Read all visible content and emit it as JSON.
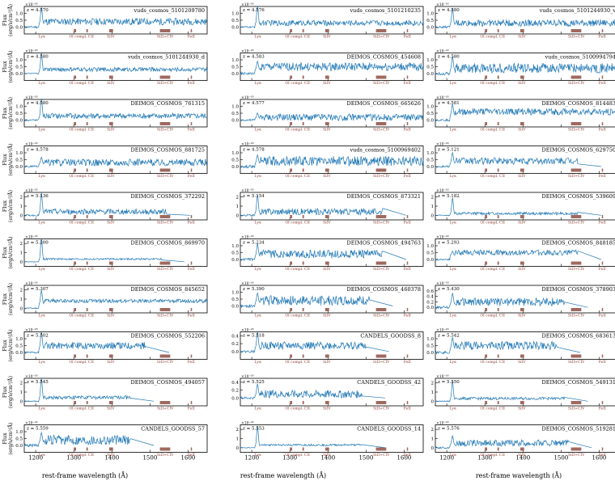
{
  "figure": {
    "ylabel_line1": "Flux",
    "ylabel_line2": "(erg/s/cm²/Å)",
    "xlabel": "rest-frame wavelength (Å)",
    "xticks": [
      "1200",
      "1300",
      "1400",
      "1500",
      "1600"
    ],
    "exponent": "×10⁻¹⁸",
    "line_labels": [
      {
        "text": "Lyα",
        "wave": 1216
      },
      {
        "text": "OI compl. CII",
        "wave": 1320
      },
      {
        "text": "SiIV",
        "wave": 1397
      },
      {
        "text": "SiII+CIV",
        "wave": 1540
      },
      {
        "text": "FeII",
        "wave": 1608
      }
    ],
    "line_markers": [
      {
        "from": 1300,
        "to": 1306
      },
      {
        "from": 1333,
        "to": 1337
      },
      {
        "from": 1393,
        "to": 1403
      },
      {
        "from": 1526,
        "to": 1553
      },
      {
        "from": 1607,
        "to": 1609
      }
    ],
    "colors": {
      "spectrum": "#1f77b4",
      "marker": "#a0695f",
      "label": "#8b3a2f"
    }
  },
  "chart_data": [
    {
      "type": "line",
      "name": "vuds_cosmos_5101209780",
      "z": "z = 4.570",
      "ylim": [
        -0.5,
        1.5
      ],
      "yticks": [
        "0.0",
        "0.5",
        "1.0"
      ],
      "xlim": [
        1170,
        1650
      ],
      "end": 1650,
      "lya": 1.2,
      "cont": 0.4,
      "noise": 0.25,
      "tail": 0.4
    },
    {
      "type": "line",
      "name": "vuds_cosmos_5101210235",
      "z": "z = 4.576",
      "ylim": [
        -0.5,
        1.5
      ],
      "yticks": [
        "0.0",
        "0.5",
        "1.0"
      ],
      "xlim": [
        1170,
        1650
      ],
      "end": 1650,
      "lya": 1.4,
      "cont": 0.3,
      "noise": 0.2,
      "tail": 0.3
    },
    {
      "type": "line",
      "name": "vuds_cosmos_5101244930_v",
      "z": "z = 4.580",
      "ylim": [
        -0.5,
        1.5
      ],
      "yticks": [
        "0.0",
        "0.5",
        "1.0"
      ],
      "xlim": [
        1170,
        1650
      ],
      "end": 1650,
      "lya": 1.2,
      "cont": 0.3,
      "noise": 0.25,
      "tail": 0.3
    },
    {
      "type": "line",
      "name": "vuds_cosmos_5101244930_d",
      "z": "z = 4.580",
      "ylim": [
        -0.5,
        1.5
      ],
      "yticks": [
        "0.0",
        "0.5",
        "1.0"
      ],
      "xlim": [
        1170,
        1650
      ],
      "end": 1650,
      "lya": 1.3,
      "cont": 0.3,
      "noise": 0.15,
      "tail": 0.3
    },
    {
      "type": "line",
      "name": "DEIMOS_COSMOS_454608",
      "z": "z = 4.583",
      "ylim": [
        -0.5,
        1.5
      ],
      "yticks": [
        "0.0",
        "0.5",
        "1.0"
      ],
      "xlim": [
        1170,
        1650
      ],
      "end": 1650,
      "lya": 0.6,
      "cont": 0.5,
      "noise": 0.3,
      "tail": 0.5
    },
    {
      "type": "line",
      "name": "vuds_cosmos_5100994794",
      "z": "z = 4.580",
      "ylim": [
        -0.5,
        1.5
      ],
      "yticks": [
        "0.0",
        "0.5",
        "1.0"
      ],
      "xlim": [
        1170,
        1650
      ],
      "end": 1650,
      "lya": 1.0,
      "cont": 0.4,
      "noise": 0.35,
      "tail": 0.4
    },
    {
      "type": "line",
      "name": "DEIMOS_COSMOS_761315",
      "z": "z = 4.580",
      "ylim": [
        -0.5,
        1.5
      ],
      "yticks": [
        "0.0",
        "0.5",
        "1.0"
      ],
      "xlim": [
        1170,
        1650
      ],
      "end": 1650,
      "lya": 1.5,
      "cont": 0.3,
      "noise": 0.2,
      "tail": 0.3
    },
    {
      "type": "line",
      "name": "DEIMOS_COSMOS_665626",
      "z": "z = 4.577",
      "ylim": [
        -0.5,
        1.5
      ],
      "yticks": [
        "0.0",
        "0.5",
        "1.0"
      ],
      "xlim": [
        1170,
        1650
      ],
      "end": 1650,
      "lya": 0.4,
      "cont": 0.2,
      "noise": 0.25,
      "tail": 0.2
    },
    {
      "type": "line",
      "name": "DEIMOS_COSMOS_814483",
      "z": "z = 4.581",
      "ylim": [
        -0.5,
        1.5
      ],
      "yticks": [
        "0.0",
        "0.5",
        "1.0"
      ],
      "xlim": [
        1170,
        1650
      ],
      "end": 1650,
      "lya": 0.8,
      "cont": 0.6,
      "noise": 0.25,
      "tail": 0.6
    },
    {
      "type": "line",
      "name": "DEIMOS_COSMOS_881725",
      "z": "z = 4.578",
      "ylim": [
        -0.5,
        1.5
      ],
      "yticks": [
        "0.0",
        "0.5",
        "1.0"
      ],
      "xlim": [
        1170,
        1650
      ],
      "end": 1650,
      "lya": 0.5,
      "cont": 0.3,
      "noise": 0.25,
      "tail": 0.3
    },
    {
      "type": "line",
      "name": "vuds_cosmos_5100969402",
      "z": "z = 4.578",
      "ylim": [
        -0.5,
        1.5
      ],
      "yticks": [
        "0.0",
        "0.5",
        "1.0"
      ],
      "xlim": [
        1170,
        1650
      ],
      "end": 1650,
      "lya": 0.6,
      "cont": 0.4,
      "noise": 0.35,
      "tail": 0.4
    },
    {
      "type": "line",
      "name": "DEIMOS_COSMOS_629750",
      "z": "z = 5.121",
      "ylim": [
        -0.5,
        1.5
      ],
      "yticks": [
        "0.0",
        "0.5",
        "1.0"
      ],
      "xlim": [
        1170,
        1650
      ],
      "end": 1545,
      "lya": 0.8,
      "cont": 0.4,
      "noise": 0.25,
      "tail": 0.0
    },
    {
      "type": "line",
      "name": "DEIMOS_COSMOS_372292",
      "z": "z = 5.136",
      "ylim": [
        -0.5,
        2.5
      ],
      "yticks": [
        "0",
        "1",
        "2"
      ],
      "xlim": [
        1170,
        1650
      ],
      "end": 1545,
      "lya": 2.2,
      "cont": 0.4,
      "noise": 0.3,
      "tail": 0.0
    },
    {
      "type": "line",
      "name": "DEIMOS_COSMOS_873321",
      "z": "z = 5.154",
      "ylim": [
        -0.5,
        2.5
      ],
      "yticks": [
        "0",
        "1",
        "2"
      ],
      "xlim": [
        1170,
        1650
      ],
      "end": 1545,
      "lya": 2.0,
      "cont": 0.4,
      "noise": 0.35,
      "tail": 0.0
    },
    {
      "type": "line",
      "name": "DEIMOS_COSMOS_539609",
      "z": "z = 5.182",
      "ylim": [
        -0.5,
        2.5
      ],
      "yticks": [
        "0",
        "1",
        "2"
      ],
      "xlim": [
        1170,
        1650
      ],
      "end": 1545,
      "lya": 1.8,
      "cont": 0.2,
      "noise": 0.15,
      "tail": 0.0
    },
    {
      "type": "line",
      "name": "DEIMOS_COSMOS_869970",
      "z": "z = 5.200",
      "ylim": [
        -0.5,
        2.5
      ],
      "yticks": [
        "0",
        "1",
        "2"
      ],
      "xlim": [
        1170,
        1650
      ],
      "end": 1530,
      "lya": 2.5,
      "cont": 0.3,
      "noise": 0.1,
      "tail": 0.0
    },
    {
      "type": "line",
      "name": "DEIMOS_COSMOS_494763",
      "z": "z = 5.234",
      "ylim": [
        -0.5,
        1.5
      ],
      "yticks": [
        "0.0",
        "0.5",
        "1.0"
      ],
      "xlim": [
        1170,
        1650
      ],
      "end": 1545,
      "lya": 0.9,
      "cont": 0.4,
      "noise": 0.3,
      "tail": 0.0
    },
    {
      "type": "line",
      "name": "DEIMOS_COSMOS_848185",
      "z": "z = 5.293",
      "ylim": [
        -0.5,
        1.5
      ],
      "yticks": [
        "0.0",
        "0.5",
        "1.0"
      ],
      "xlim": [
        1170,
        1650
      ],
      "end": 1545,
      "lya": 0.3,
      "cont": 0.5,
      "noise": 0.2,
      "tail": 0.0
    },
    {
      "type": "line",
      "name": "DEIMOS_COSMOS_845652",
      "z": "z = 5.307",
      "ylim": [
        -0.5,
        2.5
      ],
      "yticks": [
        "0",
        "1",
        "2"
      ],
      "xlim": [
        1170,
        1650
      ],
      "end": 1650,
      "lya": 1.5,
      "cont": 0.8,
      "noise": 0.2,
      "tail": 0.2
    },
    {
      "type": "line",
      "name": "DEIMOS_COSMOS_460378",
      "z": "z = 5.390",
      "ylim": [
        -0.5,
        1.5
      ],
      "yticks": [
        "0.0",
        "0.5",
        "1.0"
      ],
      "xlim": [
        1170,
        1650
      ],
      "end": 1510,
      "lya": 0.7,
      "cont": 0.4,
      "noise": 0.35,
      "tail": 0.0
    },
    {
      "type": "line",
      "name": "DEIMOS_COSMOS_378903",
      "z": "z = 5.430",
      "ylim": [
        -0.2,
        0.8
      ],
      "yticks": [
        "0.0",
        "0.2",
        "0.4",
        "0.6"
      ],
      "xlim": [
        1170,
        1650
      ],
      "end": 1510,
      "lya": 0.4,
      "cont": 0.2,
      "noise": 0.15,
      "tail": 0.0
    },
    {
      "type": "line",
      "name": "DEIMOS_COSMOS_552206",
      "z": "z = 5.502",
      "ylim": [
        -0.5,
        1.5
      ],
      "yticks": [
        "0.0",
        "0.5",
        "1.0"
      ],
      "xlim": [
        1170,
        1650
      ],
      "end": 1490,
      "lya": 1.2,
      "cont": 0.5,
      "noise": 0.25,
      "tail": 0.0
    },
    {
      "type": "line",
      "name": "CANDELS_GOODSS_8",
      "z": "z = 5.518",
      "ylim": [
        -0.2,
        0.5
      ],
      "yticks": [
        "0.0",
        "0.2",
        "0.4"
      ],
      "xlim": [
        1170,
        1650
      ],
      "end": 1500,
      "lya": 0.4,
      "cont": 0.15,
      "noise": 0.1,
      "tail": 0.0
    },
    {
      "type": "line",
      "name": "DEIMOS_COSMOS_683613",
      "z": "z = 5.542",
      "ylim": [
        -0.5,
        1.5
      ],
      "yticks": [
        "0.0",
        "0.5",
        "1.0"
      ],
      "xlim": [
        1170,
        1650
      ],
      "end": 1490,
      "lya": 0.8,
      "cont": 0.5,
      "noise": 0.3,
      "tail": 0.0
    },
    {
      "type": "line",
      "name": "DEIMOS_COSMOS_494057",
      "z": "z = 5.545",
      "ylim": [
        -0.5,
        2.5
      ],
      "yticks": [
        "0",
        "1",
        "2"
      ],
      "xlim": [
        1170,
        1650
      ],
      "end": 1450,
      "lya": 2.3,
      "cont": 0.4,
      "noise": 0.2,
      "tail": 0.0
    },
    {
      "type": "line",
      "name": "CANDELS_GOODSS_42",
      "z": "z = 5.525",
      "ylim": [
        -0.2,
        0.5
      ],
      "yticks": [
        "0.0",
        "0.2",
        "0.4"
      ],
      "xlim": [
        1170,
        1650
      ],
      "end": 1490,
      "lya": 0.3,
      "cont": 0.1,
      "noise": 0.1,
      "tail": 0.0
    },
    {
      "type": "line",
      "name": "DEIMOS_COSMOS_549131",
      "z": "z = 5.550",
      "ylim": [
        -0.5,
        2.5
      ],
      "yticks": [
        "0",
        "1",
        "2"
      ],
      "xlim": [
        1170,
        1650
      ],
      "end": 1510,
      "lya": 2.0,
      "cont": 0.3,
      "noise": 0.15,
      "tail": 0.0
    },
    {
      "type": "line",
      "name": "CANDELS_GOODSS_57",
      "z": "z = 5.559",
      "ylim": [
        -0.5,
        1.5
      ],
      "yticks": [
        "0.0",
        "0.5",
        "1.0"
      ],
      "xlim": [
        1170,
        1650
      ],
      "end": 1450,
      "lya": 0.7,
      "cont": 0.4,
      "noise": 0.35,
      "tail": 0.0
    },
    {
      "type": "line",
      "name": "CANDELS_GOODSS_14",
      "z": "z = 5.553",
      "ylim": [
        -0.5,
        2.5
      ],
      "yticks": [
        "0",
        "1",
        "2"
      ],
      "xlim": [
        1170,
        1650
      ],
      "end": 1490,
      "lya": 2.2,
      "cont": 0.3,
      "noise": 0.1,
      "tail": 0.0
    },
    {
      "type": "line",
      "name": "DEIMOS_COSMOS_519281",
      "z": "z = 5.576",
      "ylim": [
        -0.5,
        2.5
      ],
      "yticks": [
        "0",
        "1",
        "2"
      ],
      "xlim": [
        1170,
        1650
      ],
      "end": 1520,
      "lya": 1.0,
      "cont": 0.5,
      "noise": 0.35,
      "tail": 0.0
    }
  ]
}
